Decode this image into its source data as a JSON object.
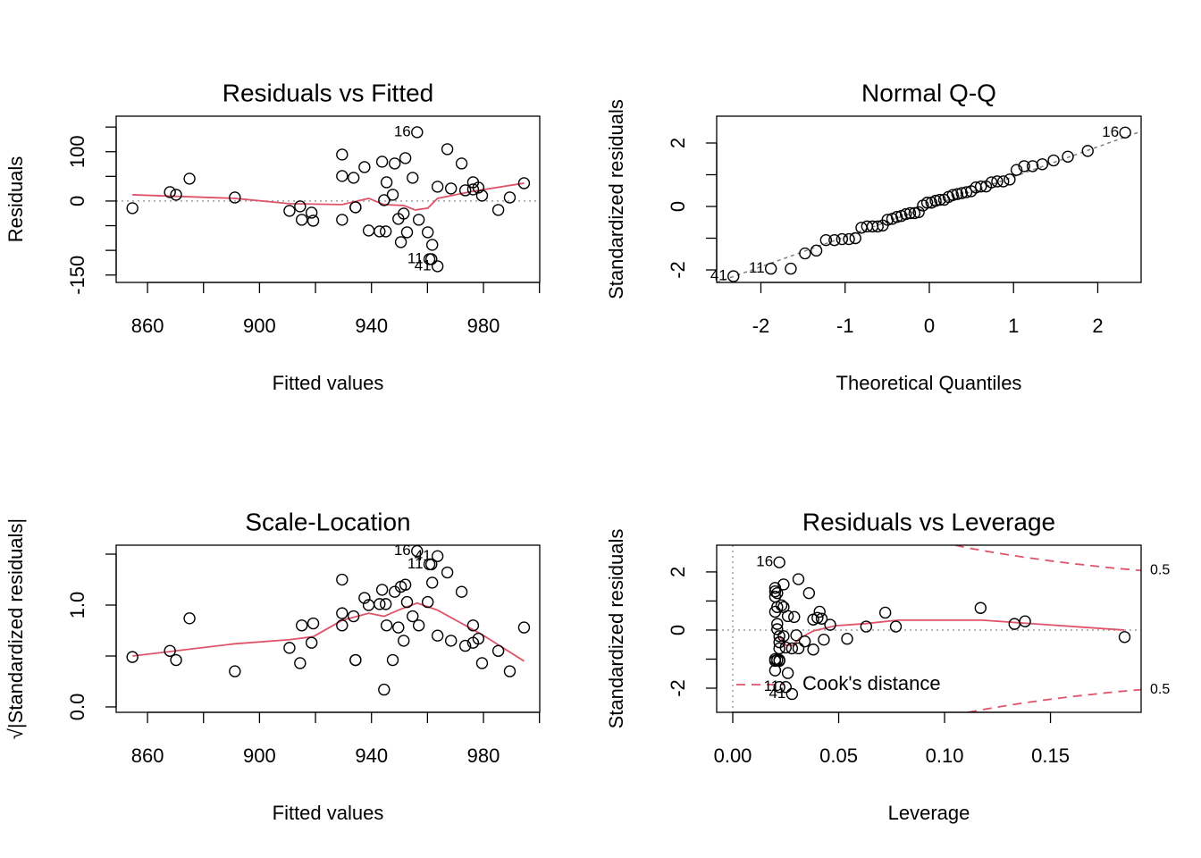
{
  "chart_data": [
    {
      "type": "scatter",
      "title": "Residuals vs Fitted",
      "xlabel": "Fitted values",
      "ylabel": "Residuals",
      "x": [
        854.6,
        868.0,
        870.2,
        875.0,
        891.2,
        910.7,
        914.5,
        915.1,
        918.6,
        919.2,
        929.5,
        929.5,
        929.5,
        933.6,
        934.3,
        934.3,
        937.5,
        939.0,
        942.9,
        943.8,
        945.1,
        944.5,
        945.4,
        947.6,
        948.3,
        949.6,
        950.5,
        951.5,
        952.1,
        952.7,
        954.7,
        956.3,
        956.9,
        960.1,
        960.7,
        961.7,
        961.4,
        963.6,
        963.6,
        967.1,
        968.4,
        972.2,
        973.5,
        976.3,
        976.3,
        978.2,
        979.5,
        985.3,
        989.4,
        994.5
      ],
      "values": [
        -14.5,
        18.1,
        12.7,
        45.3,
        7.2,
        -19.9,
        -10.9,
        -38.0,
        -23.6,
        -39.9,
        94.2,
        50.7,
        -38.0,
        47.1,
        -12.7,
        -12.7,
        68.8,
        -59.8,
        -61.6,
        79.7,
        -61.6,
        1.8,
        38.0,
        12.7,
        76.1,
        -36.2,
        -83.3,
        -25.4,
        87.0,
        -63.4,
        47.1,
        139.5,
        -38.0,
        -63.4,
        -117.8,
        -88.8,
        -117.8,
        -132.2,
        29.0,
        105.1,
        25.4,
        76.1,
        21.7,
        38.0,
        23.6,
        27.2,
        10.9,
        -18.1,
        7.2,
        36.2
      ],
      "labels": [
        null,
        null,
        null,
        null,
        null,
        null,
        null,
        null,
        null,
        null,
        null,
        null,
        null,
        null,
        null,
        null,
        null,
        null,
        null,
        null,
        null,
        null,
        null,
        null,
        null,
        null,
        null,
        null,
        null,
        null,
        null,
        "16",
        null,
        null,
        "11",
        null,
        null,
        "41",
        null,
        null,
        null,
        null,
        null,
        null,
        null,
        null,
        null,
        null,
        null,
        null
      ],
      "color": "#000000",
      "smooth": {
        "color": "#DF536B",
        "x": [
          854.6,
          891.2,
          910.7,
          929.5,
          939.0,
          944.5,
          951.5,
          955.6,
          960.1,
          963.6,
          976.3,
          994.5
        ],
        "values": [
          12.7,
          5.4,
          -5.4,
          -7.2,
          5.4,
          -7.2,
          -9.1,
          -18.1,
          -14.5,
          5.4,
          19.9,
          36.2
        ]
      },
      "hline": 0,
      "xlim": [
        848.8,
        1000.1
      ],
      "xticks": [
        860,
        900,
        940,
        980
      ],
      "x_minor_ticks": [
        880,
        920,
        960,
        1000
      ],
      "ylim": [
        -165,
        172
      ],
      "yticks": [
        -150,
        0,
        100
      ],
      "y_minor_ticks": [
        -100,
        -50,
        50,
        150
      ]
    },
    {
      "type": "scatter",
      "title": "Normal Q-Q",
      "xlabel": "Theoretical Quantiles",
      "ylabel": "Standardized residuals",
      "x": [
        -2.326,
        -1.881,
        -1.645,
        -1.476,
        -1.341,
        -1.227,
        -1.126,
        -1.036,
        -0.954,
        -0.878,
        -0.806,
        -0.739,
        -0.674,
        -0.613,
        -0.553,
        -0.496,
        -0.44,
        -0.385,
        -0.332,
        -0.279,
        -0.228,
        -0.176,
        -0.126,
        -0.075,
        -0.025,
        0.025,
        0.075,
        0.126,
        0.176,
        0.228,
        0.279,
        0.332,
        0.385,
        0.44,
        0.496,
        0.553,
        0.613,
        0.674,
        0.739,
        0.806,
        0.878,
        0.954,
        1.036,
        1.126,
        1.227,
        1.341,
        1.476,
        1.645,
        1.881,
        2.326
      ],
      "values": [
        -2.2,
        -1.96,
        -1.96,
        -1.48,
        -1.39,
        -1.06,
        -1.06,
        -1.03,
        -1.03,
        -1.0,
        -0.67,
        -0.63,
        -0.63,
        -0.63,
        -0.6,
        -0.42,
        -0.39,
        -0.33,
        -0.3,
        -0.24,
        -0.21,
        -0.21,
        -0.18,
        0.03,
        0.12,
        0.12,
        0.18,
        0.21,
        0.21,
        0.3,
        0.36,
        0.39,
        0.42,
        0.45,
        0.48,
        0.6,
        0.63,
        0.63,
        0.76,
        0.79,
        0.79,
        0.85,
        1.15,
        1.27,
        1.27,
        1.33,
        1.45,
        1.57,
        1.75,
        2.33
      ],
      "labels": [
        "41",
        "11",
        null,
        null,
        null,
        null,
        null,
        null,
        null,
        null,
        null,
        null,
        null,
        null,
        null,
        null,
        null,
        null,
        null,
        null,
        null,
        null,
        null,
        null,
        null,
        null,
        null,
        null,
        null,
        null,
        null,
        null,
        null,
        null,
        null,
        null,
        null,
        null,
        null,
        null,
        null,
        null,
        null,
        null,
        null,
        null,
        null,
        null,
        null,
        "16"
      ],
      "color": "#000000",
      "abline": {
        "intercept": -0.01,
        "slope": 0.945
      },
      "xlim": [
        -2.525,
        2.515
      ],
      "xticks": [
        -2,
        -1,
        0,
        1,
        2
      ],
      "ylim": [
        -2.394,
        2.845
      ],
      "yticks": [
        -2,
        0,
        2
      ],
      "y_minor_ticks": [
        -1,
        1
      ]
    },
    {
      "type": "scatter",
      "title": "Scale-Location",
      "xlabel": "Fitted values",
      "ylabel": "√|Standardized residuals|",
      "x": [
        854.6,
        868.0,
        870.2,
        875.0,
        891.2,
        910.7,
        914.5,
        915.1,
        918.6,
        919.2,
        929.5,
        929.5,
        929.5,
        933.6,
        934.3,
        934.3,
        937.5,
        939.0,
        942.9,
        943.8,
        945.1,
        944.5,
        945.4,
        947.6,
        948.3,
        949.6,
        950.5,
        951.5,
        952.1,
        952.7,
        954.7,
        956.3,
        956.9,
        960.1,
        960.7,
        961.7,
        961.4,
        963.6,
        963.6,
        967.1,
        968.4,
        972.2,
        973.5,
        976.3,
        976.3,
        978.2,
        979.5,
        985.3,
        989.4,
        994.5
      ],
      "values": [
        0.49,
        0.55,
        0.46,
        0.87,
        0.35,
        0.58,
        0.43,
        0.8,
        0.63,
        0.82,
        1.25,
        0.92,
        0.8,
        0.89,
        0.46,
        0.46,
        1.07,
        1.0,
        1.01,
        1.15,
        1.01,
        0.17,
        0.8,
        0.46,
        1.13,
        0.78,
        1.18,
        0.65,
        1.2,
        1.03,
        0.89,
        1.53,
        0.8,
        1.03,
        1.4,
        1.22,
        1.4,
        1.48,
        0.7,
        1.32,
        0.65,
        1.13,
        0.6,
        0.8,
        0.63,
        0.67,
        0.43,
        0.55,
        0.35,
        0.78
      ],
      "labels": [
        null,
        null,
        null,
        null,
        null,
        null,
        null,
        null,
        null,
        null,
        null,
        null,
        null,
        null,
        null,
        null,
        null,
        null,
        null,
        null,
        null,
        null,
        null,
        null,
        null,
        null,
        null,
        null,
        null,
        null,
        null,
        "16",
        null,
        null,
        "11",
        null,
        null,
        "41",
        null,
        null,
        null,
        null,
        null,
        null,
        null,
        null,
        null,
        null,
        null,
        null
      ],
      "color": "#000000",
      "smooth": {
        "color": "#DF536B",
        "x": [
          854.6,
          891.2,
          910.7,
          919.2,
          929.5,
          939.0,
          944.5,
          949.6,
          956.3,
          963.6,
          979.5,
          994.5
        ],
        "values": [
          0.5,
          0.62,
          0.66,
          0.69,
          0.85,
          0.92,
          0.89,
          0.95,
          1.02,
          0.95,
          0.71,
          0.45
        ]
      },
      "xlim": [
        848.8,
        1000.1
      ],
      "xticks": [
        860,
        900,
        940,
        980
      ],
      "x_minor_ticks": [
        880,
        920,
        960,
        1000
      ],
      "ylim": [
        -0.053,
        1.588
      ],
      "yticks": [
        {
          "value": 0,
          "label": "0.0"
        },
        {
          "value": 1,
          "label": "1.0"
        }
      ],
      "y_minor_ticks": [
        0.5,
        1.5
      ]
    },
    {
      "type": "scatter",
      "title": "Residuals vs Leverage",
      "xlabel": "Leverage",
      "ylabel": "Standardized residuals",
      "x": [
        0.185,
        0.138,
        0.133,
        0.117,
        0.077,
        0.043,
        0.03,
        0.028,
        0.034,
        0.038,
        0.024,
        0.023,
        0.022,
        0.021,
        0.022,
        0.024,
        0.02,
        0.02,
        0.021,
        0.02,
        0.022,
        0.021,
        0.02,
        0.021,
        0.021,
        0.025,
        0.02,
        0.022,
        0.02,
        0.02,
        0.024,
        0.022,
        0.031,
        0.022,
        0.025,
        0.026,
        0.022,
        0.028,
        0.026,
        0.031,
        0.04,
        0.036,
        0.038,
        0.041,
        0.042,
        0.029,
        0.046,
        0.054,
        0.063,
        0.072
      ],
      "values": [
        -0.24,
        0.3,
        0.21,
        0.76,
        0.12,
        -0.33,
        -0.18,
        -0.63,
        -0.39,
        -0.67,
        1.57,
        0.85,
        -0.63,
        0.79,
        -0.21,
        -0.21,
        1.15,
        -1.0,
        -1.03,
        1.33,
        -1.03,
        0.03,
        0.63,
        0.21,
        1.27,
        -0.6,
        -1.39,
        -0.42,
        1.45,
        -1.06,
        0.79,
        2.33,
        -0.63,
        -1.06,
        -1.96,
        -1.48,
        -1.96,
        -2.2,
        0.48,
        1.75,
        0.42,
        1.27,
        0.36,
        0.63,
        0.39,
        0.45,
        0.18,
        -0.3,
        0.12,
        0.6
      ],
      "labels": [
        null,
        null,
        null,
        null,
        null,
        null,
        null,
        null,
        null,
        null,
        null,
        null,
        null,
        null,
        null,
        null,
        null,
        null,
        null,
        null,
        null,
        null,
        null,
        null,
        null,
        null,
        null,
        null,
        null,
        null,
        null,
        "16",
        null,
        null,
        "11",
        null,
        null,
        "41",
        null,
        null,
        null,
        null,
        null,
        null,
        null,
        null,
        null,
        null,
        null,
        null
      ],
      "color": "#000000",
      "smooth": {
        "color": "#DF536B",
        "x": [
          0.0194,
          0.0224,
          0.0249,
          0.0283,
          0.0316,
          0.038,
          0.0485,
          0.0624,
          0.078,
          0.1177,
          0.1848
        ],
        "values": [
          -0.31,
          -0.22,
          -0.52,
          -0.52,
          -0.28,
          -0.03,
          0.15,
          0.22,
          0.34,
          0.34,
          0.0
        ]
      },
      "contours": {
        "name": "Cook's distance",
        "color": "#DF536B",
        "levels": [
          0.5
        ],
        "x": [
          0.105,
          0.11,
          0.12,
          0.13,
          0.14,
          0.15,
          0.16,
          0.17,
          0.18,
          0.1928,
          null,
          0.111,
          0.12,
          0.13,
          0.14,
          0.15,
          0.16,
          0.17,
          0.18,
          0.1928
        ],
        "values": [
          2.92,
          2.84,
          2.71,
          2.59,
          2.48,
          2.38,
          2.29,
          2.21,
          2.13,
          2.05,
          null,
          -2.83,
          -2.71,
          -2.59,
          -2.48,
          -2.38,
          -2.29,
          -2.21,
          -2.13,
          -2.05
        ]
      },
      "hline": 0,
      "vline": 0,
      "xlim": [
        -0.0076,
        0.1928
      ],
      "xticks": [
        {
          "value": 0,
          "label": "0.00"
        },
        0.05,
        {
          "value": 0.1,
          "label": "0.10"
        },
        0.15
      ],
      "ylim": [
        -2.83,
        2.92
      ],
      "yticks": [
        -2,
        0,
        2
      ],
      "y_minor_ticks": [
        -1,
        1
      ]
    }
  ]
}
